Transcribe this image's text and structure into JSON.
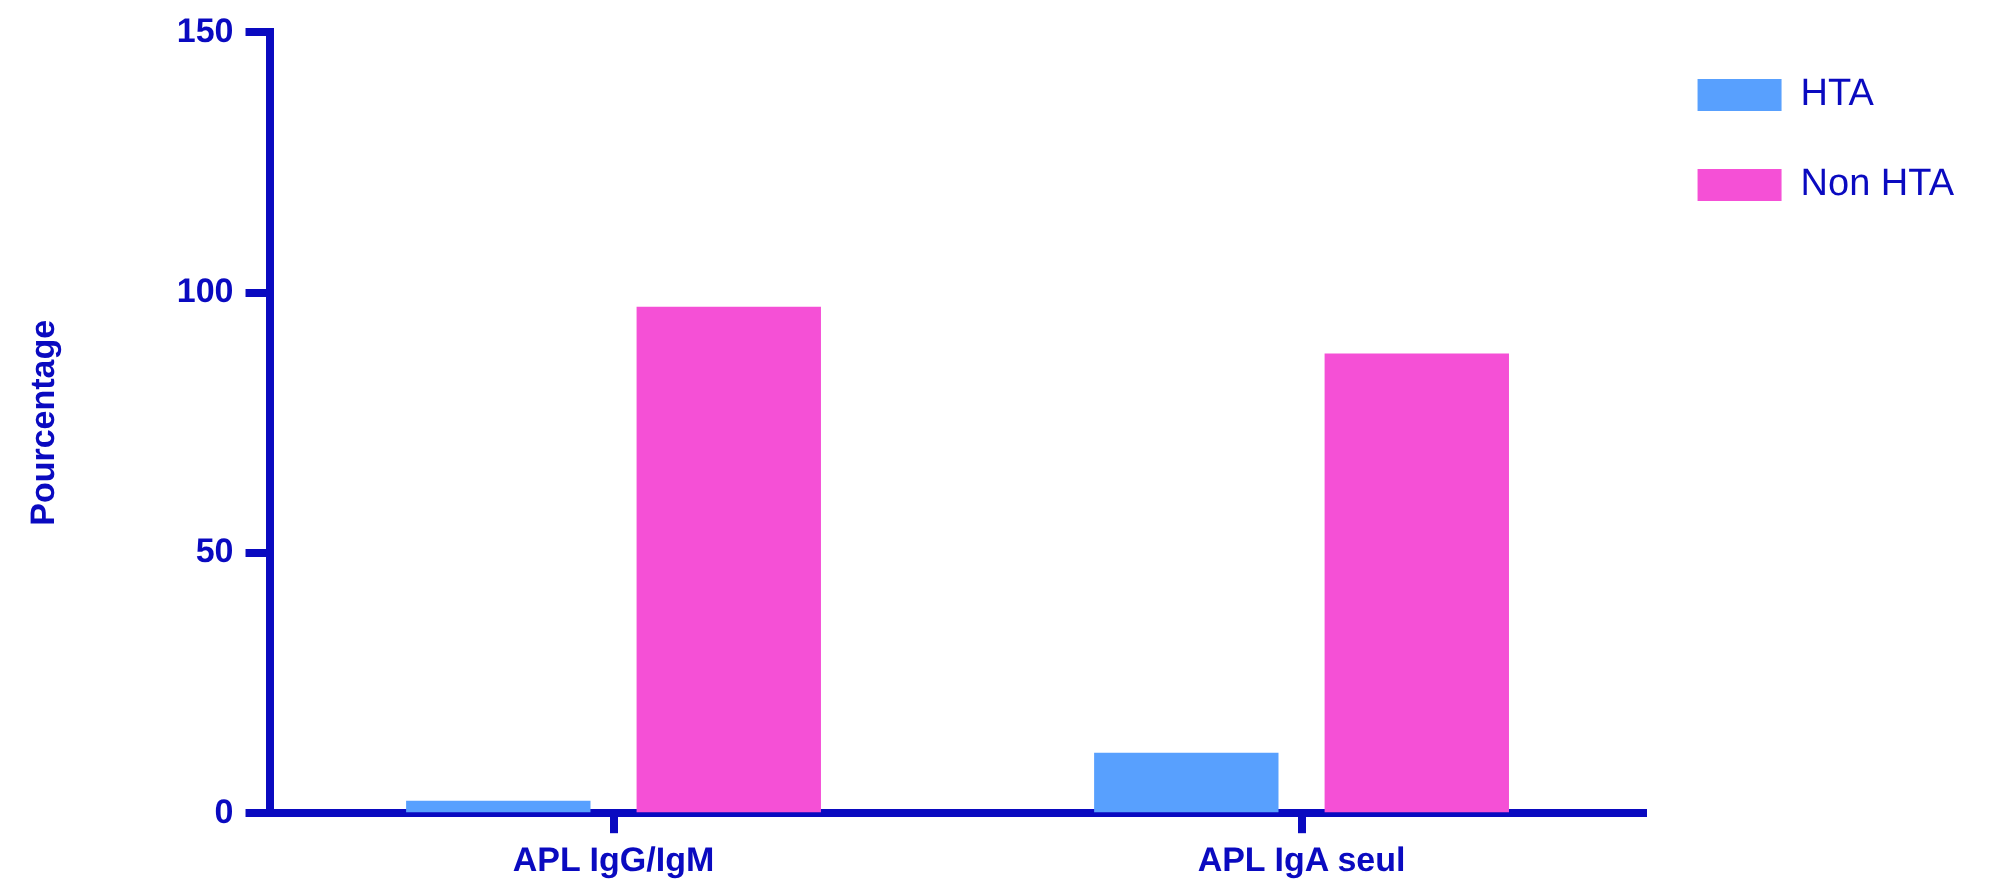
{
  "chart_data": {
    "type": "bar",
    "ylabel": "Pourcentage",
    "categories": [
      "APL IgG/IgM",
      "APL IgA seul"
    ],
    "series": [
      {
        "name": "HTA",
        "color": "#58a0fe",
        "values": [
          2.4,
          11.6
        ]
      },
      {
        "name": "Non HTA",
        "color": "#f550d6",
        "values": [
          97.3,
          88.3
        ]
      }
    ],
    "ylim": [
      0,
      150
    ],
    "yticks": [
      0,
      50,
      100,
      150
    ],
    "grid": false,
    "legend": "top right"
  }
}
